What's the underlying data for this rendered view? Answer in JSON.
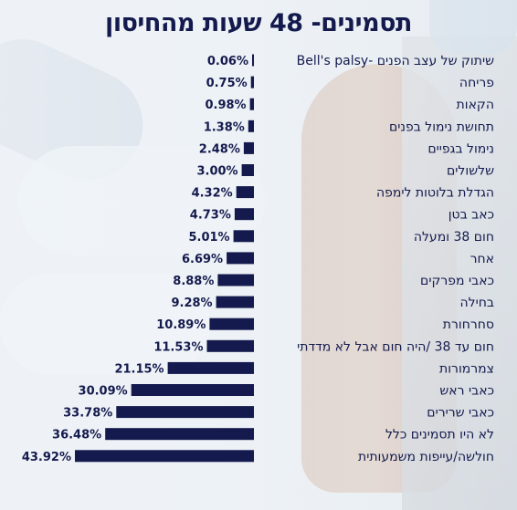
{
  "chart_data": {
    "type": "bar",
    "orientation": "horizontal",
    "title": "תסמינים- 48 שעות מהחיסון",
    "categories": [
      "שיתוק של עצב הפנים -Bell's palsy",
      "פריחה",
      "הקאות",
      "תחושת נימול בפנים",
      "נימול בגפיים",
      "שלשולים",
      "הגדלת בלוטות לימפה",
      "כאב בטן",
      "חום 38 ומעלה",
      "אחר",
      "כאבי מפרקים",
      "בחילה",
      "סחרחורת",
      "חום עד 38 /היה חום אבל לא מדדתי",
      "צמרמורות",
      "כאבי ראש",
      "כאבי שרירים",
      "לא היו תסמינים כלל",
      "חולשה/עייפות משמעותית"
    ],
    "values": [
      0.06,
      0.75,
      0.98,
      1.38,
      2.48,
      3.0,
      4.32,
      4.73,
      5.01,
      6.69,
      8.88,
      9.28,
      10.89,
      11.53,
      21.15,
      30.09,
      33.78,
      36.48,
      43.92
    ],
    "value_labels": [
      "0.06%",
      "0.75%",
      "0.98%",
      "1.38%",
      "2.48%",
      "3.00%",
      "4.32%",
      "4.73%",
      "5.01%",
      "6.69%",
      "8.88%",
      "9.28%",
      "10.89%",
      "11.53%",
      "21.15%",
      "30.09%",
      "33.78%",
      "36.48%",
      "43.92%"
    ],
    "xlim": [
      0,
      43.92
    ],
    "bar_color": "#141a4d",
    "grid": false,
    "legend": "none"
  }
}
